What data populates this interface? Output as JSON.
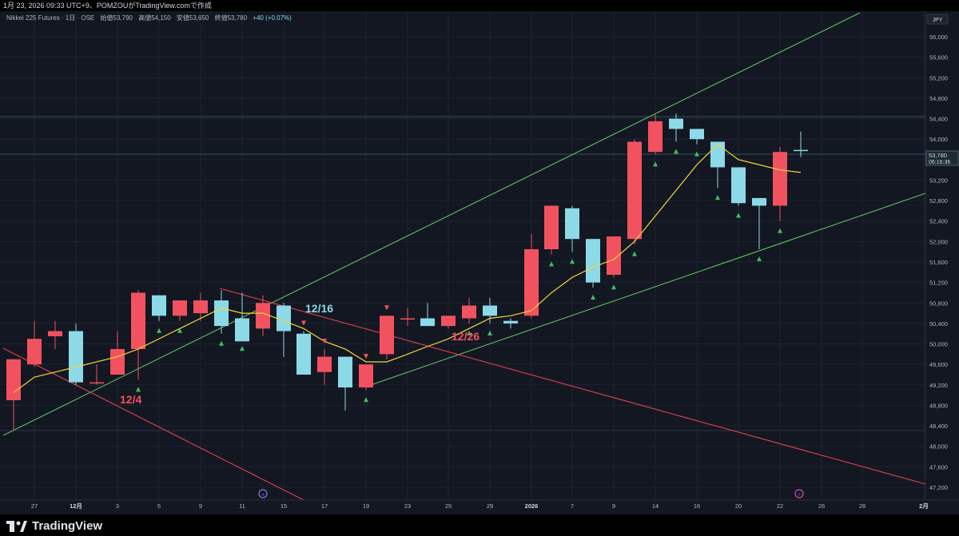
{
  "topbar": {
    "text": "1月 23, 2026 09:33 UTC+9、POMZOUがTradingView.comで作成"
  },
  "legend": {
    "symbol": "Nikkei 225 Futures · 1日 · OSE",
    "open": "始値53,790",
    "high": "高値54,150",
    "low": "安値53,650",
    "close": "終値53,780",
    "change": "+40 (+0.07%)"
  },
  "currency_label": "JPY",
  "price_tag": {
    "price": "53,780",
    "countdown": "06:16:36"
  },
  "footer": {
    "brand": "TradingView"
  },
  "colors": {
    "background": "#131722",
    "up": "#8cd9e8",
    "down": "#f2525f",
    "ma": "#f5d63d",
    "channel": "#5fbf5f",
    "red_line": "#e0424f",
    "marker_up": "#3fbf60",
    "marker_down": "#f2525f",
    "grid": "#1f2330"
  },
  "chart_data": {
    "type": "candlestick",
    "y_axis": {
      "range": [
        46950,
        56500
      ],
      "ticks": [
        47200,
        47600,
        48000,
        48400,
        48800,
        49200,
        49600,
        50000,
        50400,
        50800,
        51200,
        51600,
        52000,
        52400,
        52800,
        53200,
        53600,
        54000,
        54400,
        54800,
        55200,
        55600,
        56000
      ],
      "tick_labels": [
        "47,200",
        "47,600",
        "48,000",
        "48,400",
        "48,800",
        "49,200",
        "49,600",
        "50,000",
        "50,400",
        "50,800",
        "51,200",
        "51,600",
        "52,000",
        "52,400",
        "52,800",
        "53,200",
        "53,600",
        "54,000",
        "54,400",
        "54,800",
        "55,200",
        "55,600",
        "56,000"
      ]
    },
    "x_axis": {
      "labels": [
        "27",
        "12月",
        "3",
        "5",
        "9",
        "11",
        "15",
        "17",
        "19",
        "23",
        "25",
        "29",
        "2026",
        "7",
        "9",
        "14",
        "16",
        "20",
        "22",
        "26",
        "28",
        "2月"
      ]
    },
    "candles": [
      {
        "date": "11/26",
        "o": 48900,
        "h": 49700,
        "l": 48300,
        "c": 49700
      },
      {
        "date": "11/27",
        "o": 49600,
        "h": 50450,
        "l": 49550,
        "c": 50100
      },
      {
        "date": "11/28",
        "o": 50150,
        "h": 50450,
        "l": 49900,
        "c": 50250
      },
      {
        "date": "12/1",
        "o": 50250,
        "h": 50400,
        "l": 49200,
        "c": 49250
      },
      {
        "date": "12/2",
        "o": 49250,
        "h": 49600,
        "l": 49200,
        "c": 49250
      },
      {
        "date": "12/3",
        "o": 49400,
        "h": 50250,
        "l": 49400,
        "c": 49900
      },
      {
        "date": "12/4",
        "o": 49900,
        "h": 51050,
        "l": 49300,
        "c": 51000
      },
      {
        "date": "12/5",
        "o": 50950,
        "h": 50950,
        "l": 50450,
        "c": 50550
      },
      {
        "date": "12/8",
        "o": 50550,
        "h": 50850,
        "l": 50450,
        "c": 50850
      },
      {
        "date": "12/9",
        "o": 50600,
        "h": 51000,
        "l": 50450,
        "c": 50850
      },
      {
        "date": "12/10",
        "o": 50850,
        "h": 51050,
        "l": 50200,
        "c": 50350
      },
      {
        "date": "12/11",
        "o": 50500,
        "h": 51000,
        "l": 50100,
        "c": 50050
      },
      {
        "date": "12/12",
        "o": 50300,
        "h": 50950,
        "l": 50150,
        "c": 50800
      },
      {
        "date": "12/15",
        "o": 50750,
        "h": 50800,
        "l": 49750,
        "c": 50250
      },
      {
        "date": "12/16",
        "o": 50200,
        "h": 50250,
        "l": 49400,
        "c": 49400
      },
      {
        "date": "12/17",
        "o": 49450,
        "h": 49900,
        "l": 49200,
        "c": 49750
      },
      {
        "date": "12/18",
        "o": 49750,
        "h": 49750,
        "l": 48700,
        "c": 49150
      },
      {
        "date": "12/19",
        "o": 49150,
        "h": 49600,
        "l": 49100,
        "c": 49600
      },
      {
        "date": "12/22",
        "o": 49800,
        "h": 50550,
        "l": 49700,
        "c": 50550
      },
      {
        "date": "12/23",
        "o": 50500,
        "h": 50700,
        "l": 50350,
        "c": 50500
      },
      {
        "date": "12/24",
        "o": 50500,
        "h": 50800,
        "l": 50350,
        "c": 50350
      },
      {
        "date": "12/25",
        "o": 50350,
        "h": 50550,
        "l": 50300,
        "c": 50550
      },
      {
        "date": "12/26",
        "o": 50500,
        "h": 50900,
        "l": 50400,
        "c": 50750
      },
      {
        "date": "12/29",
        "o": 50750,
        "h": 50900,
        "l": 50400,
        "c": 50550
      },
      {
        "date": "12/30",
        "o": 50450,
        "h": 50500,
        "l": 50300,
        "c": 50400
      },
      {
        "date": "1/5",
        "o": 50550,
        "h": 52150,
        "l": 50500,
        "c": 51850
      },
      {
        "date": "1/6",
        "o": 51850,
        "h": 52700,
        "l": 51750,
        "c": 52700
      },
      {
        "date": "1/7",
        "o": 52650,
        "h": 52700,
        "l": 51800,
        "c": 52050
      },
      {
        "date": "1/8",
        "o": 52050,
        "h": 52050,
        "l": 51100,
        "c": 51200
      },
      {
        "date": "1/9",
        "o": 51350,
        "h": 52100,
        "l": 51300,
        "c": 52100
      },
      {
        "date": "1/13",
        "o": 52050,
        "h": 54000,
        "l": 51950,
        "c": 53950
      },
      {
        "date": "1/14",
        "o": 53750,
        "h": 54500,
        "l": 53700,
        "c": 54350
      },
      {
        "date": "1/15",
        "o": 54400,
        "h": 54500,
        "l": 53950,
        "c": 54200
      },
      {
        "date": "1/16",
        "o": 54200,
        "h": 54200,
        "l": 53900,
        "c": 54000
      },
      {
        "date": "1/19",
        "o": 53950,
        "h": 53950,
        "l": 53050,
        "c": 53450
      },
      {
        "date": "1/20",
        "o": 53450,
        "h": 53450,
        "l": 52700,
        "c": 52750
      },
      {
        "date": "1/21",
        "o": 52850,
        "h": 52850,
        "l": 51850,
        "c": 52700
      },
      {
        "date": "1/22",
        "o": 52700,
        "h": 53850,
        "l": 52400,
        "c": 53750
      },
      {
        "date": "1/23",
        "o": 53790,
        "h": 54150,
        "l": 53650,
        "c": 53780
      }
    ],
    "moving_average": [
      49050,
      49350,
      49450,
      49550,
      49650,
      49750,
      49900,
      50100,
      50300,
      50500,
      50700,
      50600,
      50600,
      50450,
      50300,
      50050,
      49900,
      49650,
      49650,
      49800,
      49950,
      50100,
      50300,
      50500,
      50550,
      50650,
      51000,
      51300,
      51500,
      51650,
      52000,
      52500,
      53000,
      53500,
      53900,
      53600,
      53500,
      53400,
      53350
    ],
    "markers_up": [
      "12/4",
      "12/5",
      "12/8",
      "12/10",
      "12/11",
      "12/19",
      "12/26",
      "12/29",
      "1/6",
      "1/7",
      "1/8",
      "1/9",
      "1/13",
      "1/14",
      "1/15",
      "1/16",
      "1/19",
      "1/20",
      "1/21",
      "1/22"
    ],
    "markers_down": [
      "12/16",
      "12/17",
      "12/19",
      "12/22"
    ],
    "annotations": [
      {
        "text": "12/4",
        "color": "#f2525f"
      },
      {
        "text": "12/16",
        "color": "#8cd9e8"
      },
      {
        "text": "12/26",
        "color": "#f2525f"
      }
    ]
  }
}
